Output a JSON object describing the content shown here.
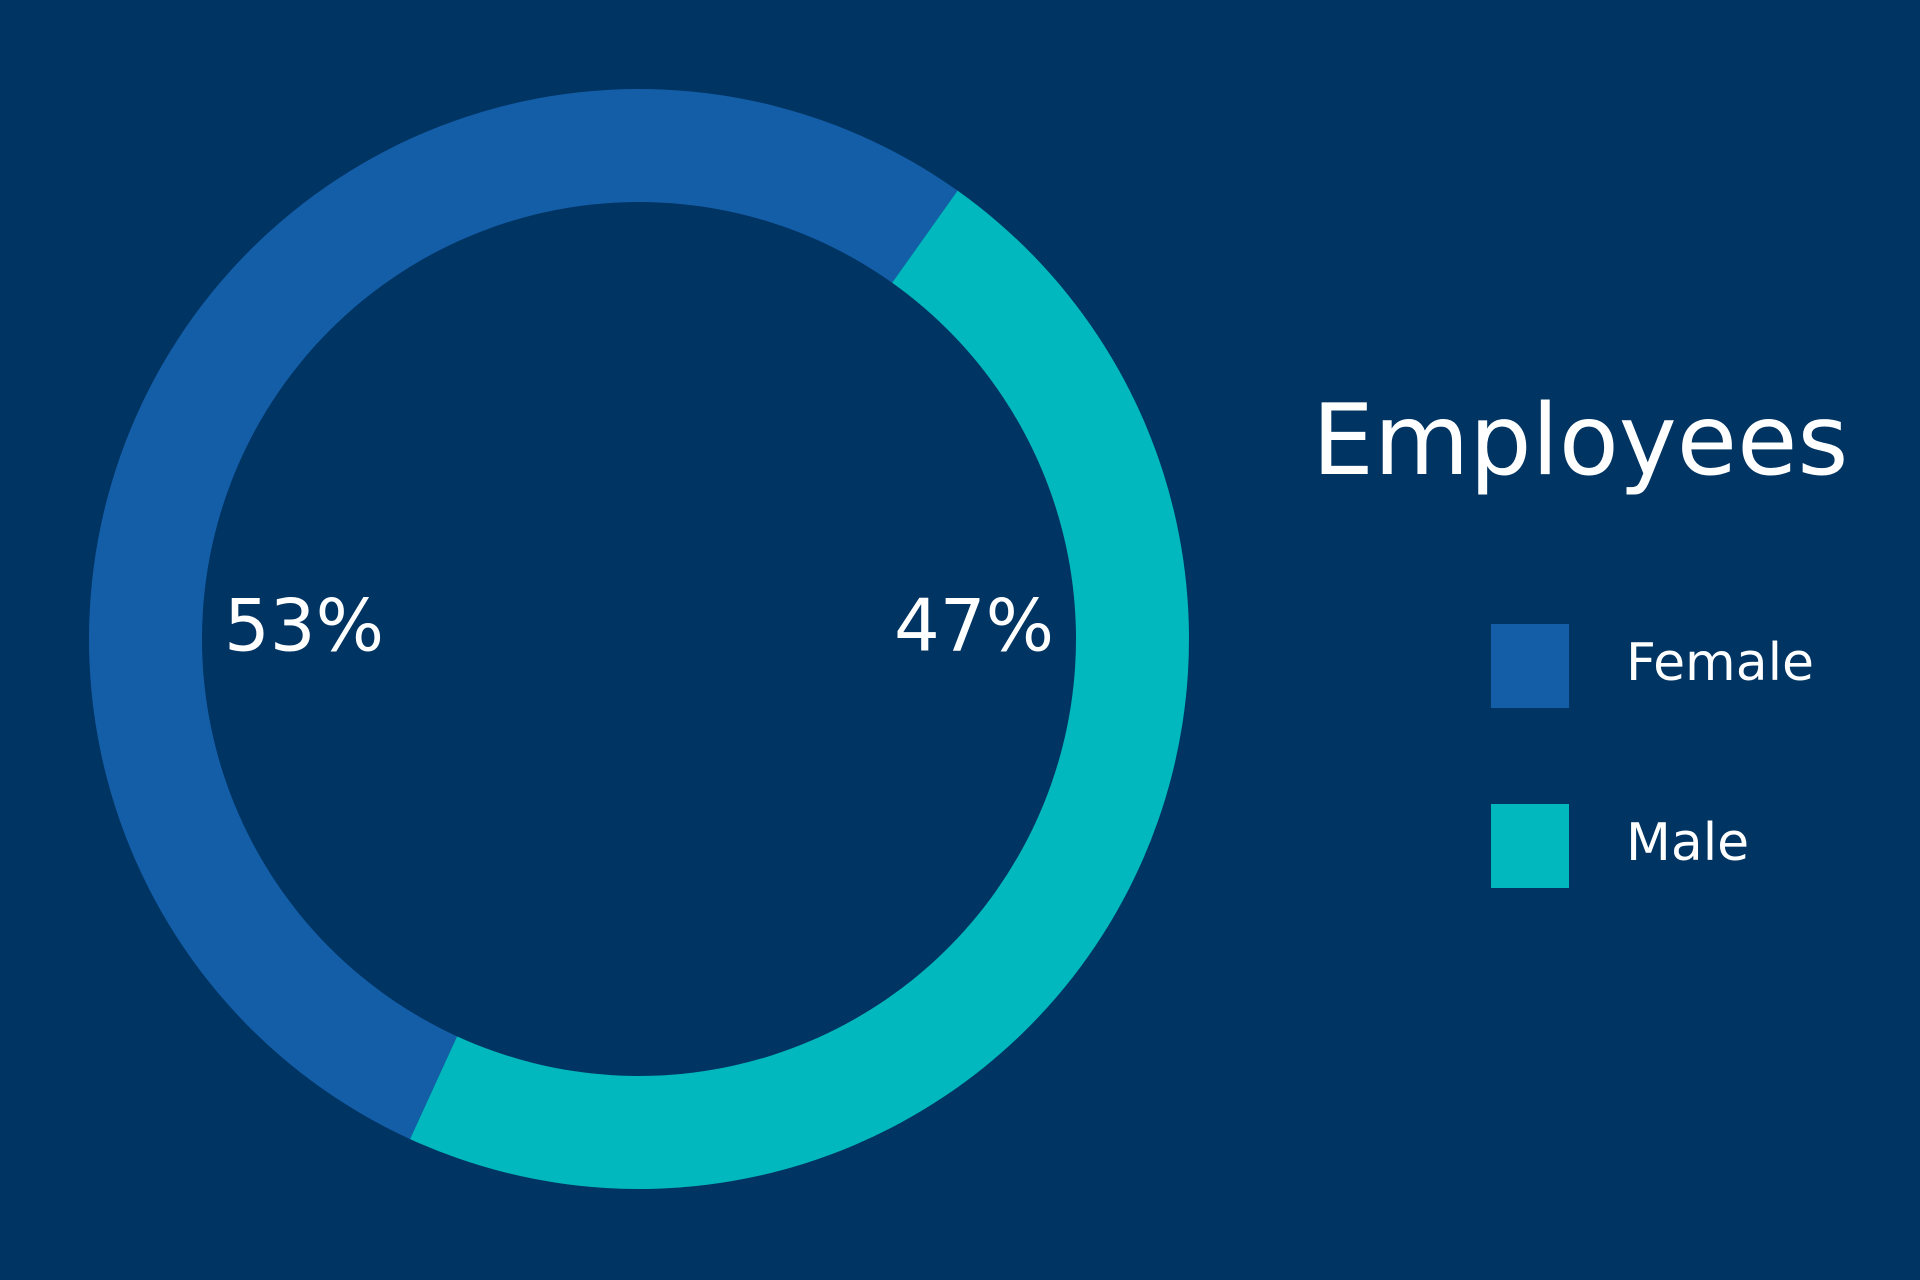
{
  "chart_data": {
    "type": "donut",
    "title": "Employees",
    "categories": [
      "Female",
      "Male"
    ],
    "values": [
      53,
      47
    ],
    "value_labels": [
      "53%",
      "47%"
    ],
    "colors": [
      "#145ea8",
      "#00b8bd"
    ]
  }
}
